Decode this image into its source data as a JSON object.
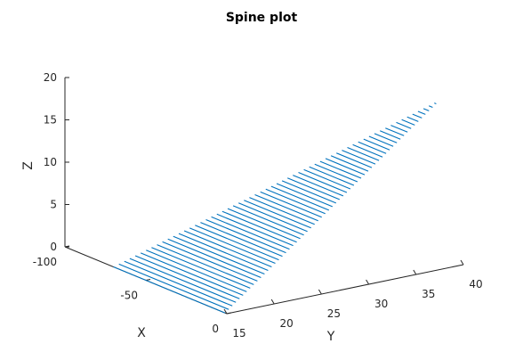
{
  "chart_data": {
    "type": "line",
    "projection": "3d",
    "title": "Spine plot",
    "xlabel": "X",
    "ylabel": "Y",
    "zlabel": "Z",
    "xlim": [
      -100,
      0
    ],
    "ylim": [
      15,
      40
    ],
    "zlim": [
      0,
      20
    ],
    "x_ticks": [
      "-100",
      "-50",
      "0"
    ],
    "y_ticks": [
      "15",
      "20",
      "25",
      "30",
      "35",
      "40"
    ],
    "z_ticks": [
      "0",
      "5",
      "10",
      "15",
      "20"
    ],
    "grid": false,
    "line_color": "#0072BD",
    "spine_count": 61,
    "spine_base": {
      "x": [
        -1,
        0
      ],
      "y": [
        15,
        37.5
      ],
      "z": [
        0,
        20
      ]
    },
    "spine_tip": {
      "x": [
        -70,
        0
      ],
      "y": [
        15,
        37.5
      ],
      "z": [
        0,
        20
      ]
    }
  }
}
